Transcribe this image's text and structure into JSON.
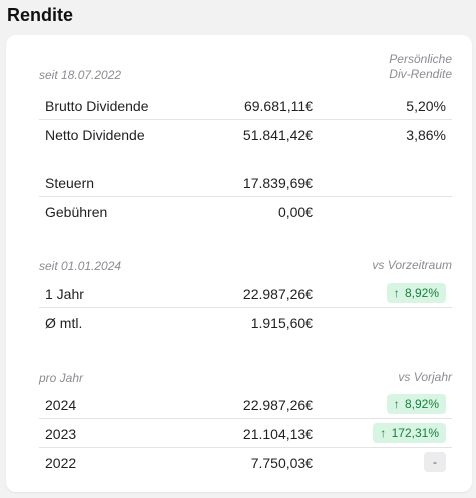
{
  "title": "Rendite",
  "section1": {
    "left_header": "seit 18.07.2022",
    "right_header_line1": "Persönliche",
    "right_header_line2": "Div-Rendite",
    "rows": [
      {
        "label": "Brutto Dividende",
        "amount": "69.681,11€",
        "pct": "5,20%"
      },
      {
        "label": "Netto Dividende",
        "amount": "51.841,42€",
        "pct": "3,86%"
      }
    ]
  },
  "section2": {
    "rows": [
      {
        "label": "Steuern",
        "amount": "17.839,69€"
      },
      {
        "label": "Gebühren",
        "amount": "0,00€"
      }
    ]
  },
  "section3": {
    "left_header": "seit 01.01.2024",
    "right_header": "vs Vorzeitraum",
    "rows": [
      {
        "label": "1 Jahr",
        "amount": "22.987,26€",
        "badge": "8,92%",
        "arrow": "↑"
      },
      {
        "label": "Ø mtl.",
        "amount": "1.915,60€"
      }
    ]
  },
  "section4": {
    "left_header": "pro Jahr",
    "right_header": "vs Vorjahr",
    "rows": [
      {
        "label": "2024",
        "amount": "22.987,26€",
        "badge": "8,92%",
        "arrow": "↑"
      },
      {
        "label": "2023",
        "amount": "21.104,13€",
        "badge": "172,31%",
        "arrow": "↑"
      },
      {
        "label": "2022",
        "amount": "7.750,03€",
        "badge": "-"
      }
    ]
  },
  "colors": {
    "positive_bg": "#d8f4e3",
    "positive_text": "#17803d",
    "neutral_bg": "#ececee"
  }
}
